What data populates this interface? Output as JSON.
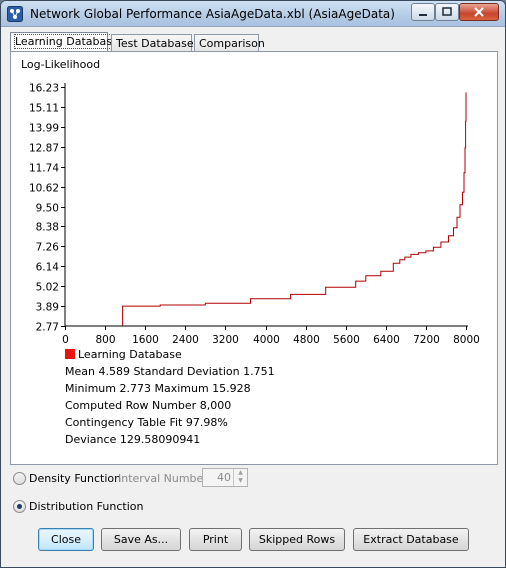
{
  "window": {
    "title": "Network Global Performance AsiaAgeData.xbl (AsiaAgeData)"
  },
  "tabs": [
    {
      "label": "Learning Database",
      "active": true
    },
    {
      "label": "Test Database",
      "active": false
    },
    {
      "label": "Comparison",
      "active": false
    }
  ],
  "chart_data": {
    "type": "line",
    "ylabel": "Log-Likelihood",
    "xlabel": "",
    "xlim": [
      0,
      8000
    ],
    "ylim": [
      2.77,
      16.23
    ],
    "x_ticks": [
      "0",
      "800",
      "1600",
      "2400",
      "3200",
      "4000",
      "4800",
      "5600",
      "6400",
      "7200",
      "8000"
    ],
    "y_ticks": [
      "16.23",
      "15.11",
      "13.99",
      "12.87",
      "11.74",
      "10.62",
      "9.50",
      "8.38",
      "7.26",
      "6.14",
      "5.02",
      "3.89",
      "2.77"
    ],
    "line_color": "#b00000",
    "series": [
      {
        "name": "Learning Database",
        "x": [
          1150,
          1150,
          1900,
          2800,
          3700,
          4500,
          5200,
          5800,
          6000,
          6300,
          6550,
          6680,
          6780,
          6900,
          7050,
          7200,
          7350,
          7500,
          7650,
          7750,
          7820,
          7880,
          7930,
          7960,
          7980,
          7992,
          8000
        ],
        "y": [
          2.773,
          3.89,
          3.95,
          4.05,
          4.3,
          4.55,
          4.95,
          5.3,
          5.6,
          5.85,
          6.3,
          6.5,
          6.65,
          6.8,
          6.9,
          7.0,
          7.2,
          7.5,
          7.85,
          8.3,
          8.9,
          9.6,
          10.3,
          11.4,
          12.8,
          14.3,
          15.928
        ]
      }
    ]
  },
  "legend": {
    "label": "Learning Database",
    "color": "#e8150f"
  },
  "stats": {
    "line1": "Mean 4.589 Standard Deviation 1.751",
    "line2": "Minimum 2.773 Maximum 15.928",
    "line3": "Computed Row Number 8,000",
    "line4": "Contingency Table Fit 97.98%",
    "line5": "Deviance 129.58090941"
  },
  "options": {
    "density_label": "Density Function",
    "density_checked": false,
    "interval_label": "Interval Number",
    "interval_value": "40",
    "distribution_label": "Distribution Function",
    "distribution_checked": true
  },
  "buttons": {
    "close": "Close",
    "save_as": "Save As...",
    "print": "Print",
    "skipped_rows": "Skipped Rows",
    "extract_database": "Extract Database"
  }
}
